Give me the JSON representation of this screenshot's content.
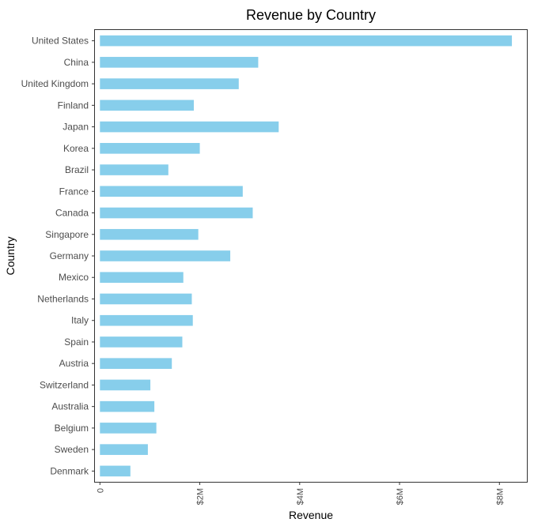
{
  "chart_data": {
    "type": "bar",
    "orientation": "horizontal",
    "title": "Revenue by Country",
    "xlabel": "Revenue",
    "ylabel": "Country",
    "categories": [
      "United States",
      "China",
      "United Kingdom",
      "Finland",
      "Japan",
      "Korea",
      "Brazil",
      "France",
      "Canada",
      "Singapore",
      "Germany",
      "Mexico",
      "Netherlands",
      "Italy",
      "Spain",
      "Austria",
      "Switzerland",
      "Australia",
      "Belgium",
      "Sweden",
      "Denmark"
    ],
    "values": [
      8250000,
      3170000,
      2780000,
      1880000,
      3580000,
      2000000,
      1370000,
      2860000,
      3060000,
      1970000,
      2610000,
      1670000,
      1840000,
      1860000,
      1650000,
      1440000,
      1010000,
      1090000,
      1130000,
      960000,
      610000
    ],
    "xlim": [
      -100000,
      8550000
    ],
    "x_ticks": [
      0,
      2000000,
      4000000,
      6000000,
      8000000
    ],
    "x_tick_labels": [
      "0",
      "$2M",
      "$4M",
      "$6M",
      "$8M"
    ],
    "bar_color": "#87CEEB",
    "grid": false,
    "legend": "none"
  }
}
